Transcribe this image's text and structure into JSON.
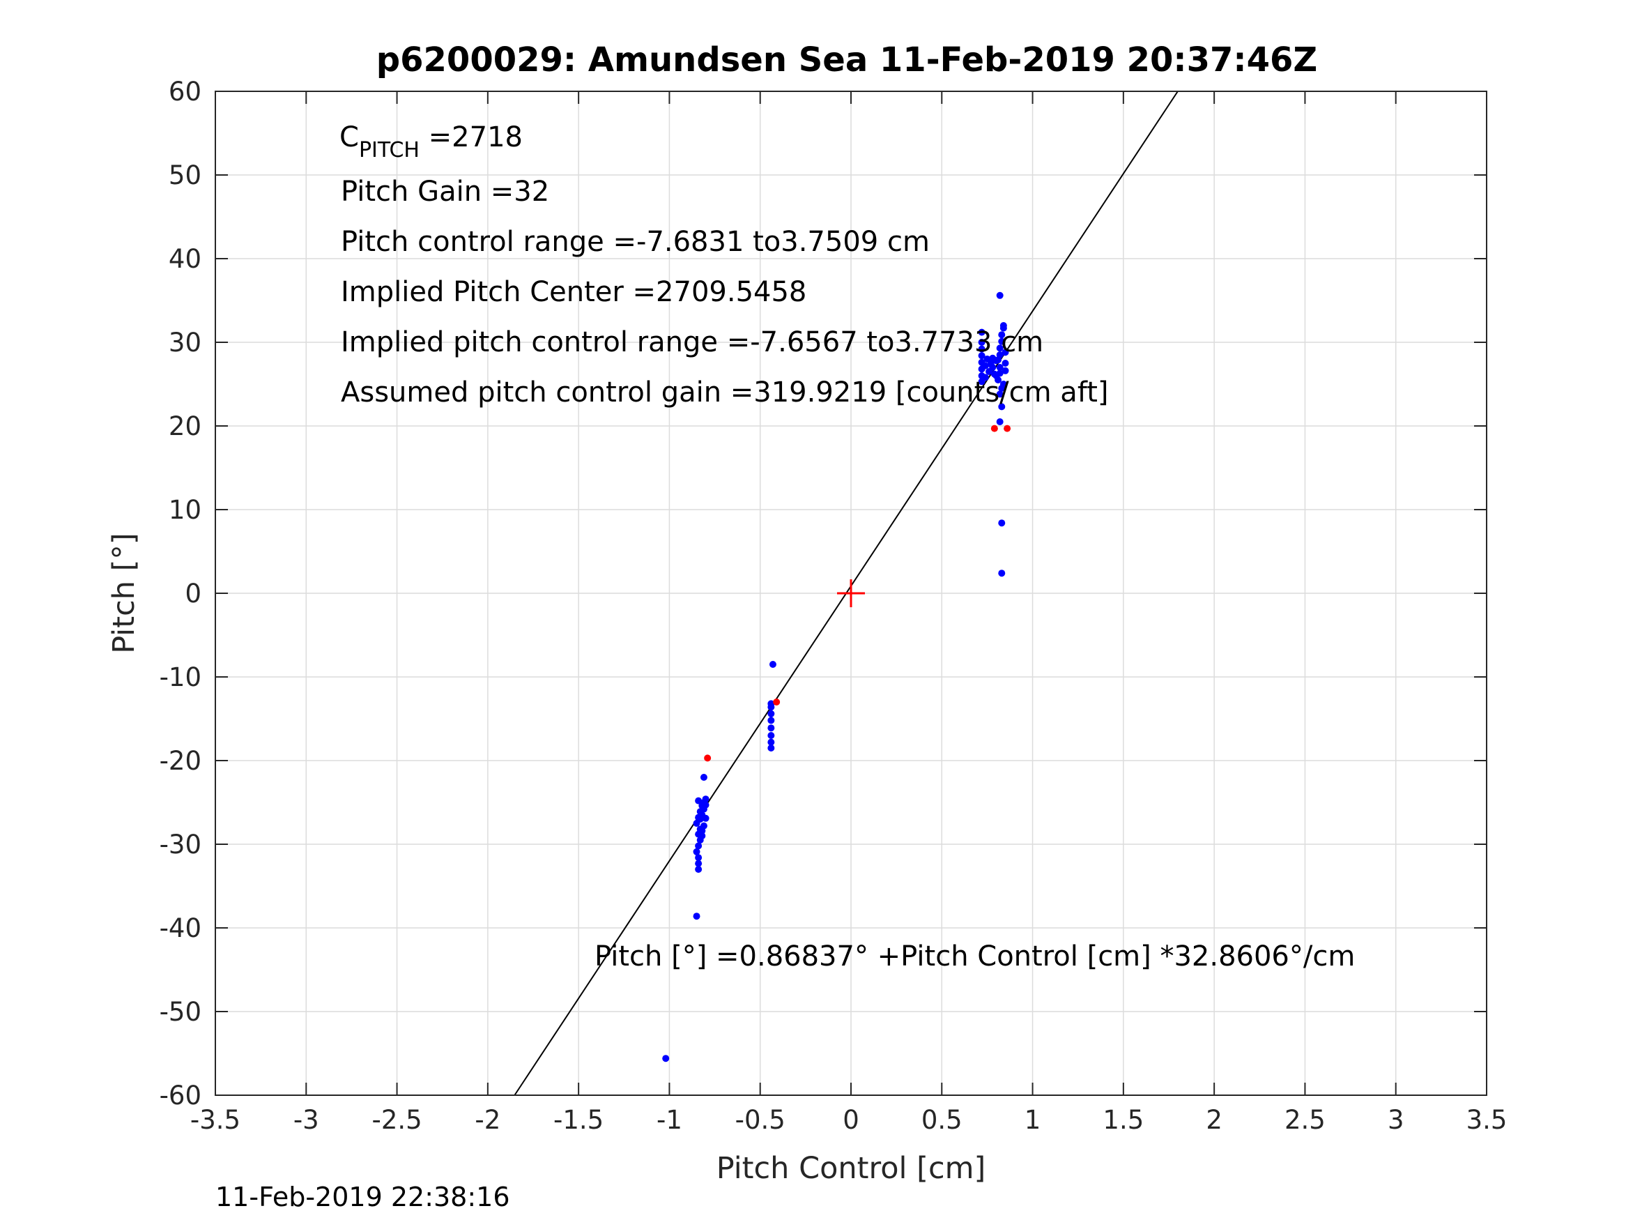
{
  "chart_data": {
    "type": "scatter",
    "title": "p6200029: Amundsen Sea 11-Feb-2019 20:37:46Z",
    "xlabel": "Pitch Control [cm]",
    "ylabel": "Pitch [°]",
    "xlim": [
      -3.5,
      3.5
    ],
    "ylim": [
      -60,
      60
    ],
    "xticks": [
      -3.5,
      -3,
      -2.5,
      -2,
      -1.5,
      -1,
      -0.5,
      0,
      0.5,
      1,
      1.5,
      2,
      2.5,
      3,
      3.5
    ],
    "xtick_labels": [
      "-3.5",
      "-3",
      "-2.5",
      "-2",
      "-1.5",
      "-1",
      "-0.5",
      "0",
      "0.5",
      "1",
      "1.5",
      "2",
      "2.5",
      "3",
      "3.5"
    ],
    "yticks": [
      -60,
      -50,
      -40,
      -30,
      -20,
      -10,
      0,
      10,
      20,
      30,
      40,
      50,
      60
    ],
    "ytick_labels": [
      "-60",
      "-50",
      "-40",
      "-30",
      "-20",
      "-10",
      "0",
      "10",
      "20",
      "30",
      "40",
      "50",
      "60"
    ],
    "grid": true,
    "fit_line": {
      "intercept": 0.86837,
      "slope": 32.8606
    },
    "center_marker": {
      "x": 0,
      "y": 0,
      "color": "#ff0000"
    },
    "series": [
      {
        "color": "#0000ff",
        "points": [
          [
            -1.02,
            -55.6
          ],
          [
            -0.85,
            -38.6
          ],
          [
            -0.84,
            -33.0
          ],
          [
            -0.84,
            -32.3
          ],
          [
            -0.84,
            -31.6
          ],
          [
            -0.85,
            -30.9
          ],
          [
            -0.84,
            -30.2
          ],
          [
            -0.83,
            -29.5
          ],
          [
            -0.84,
            -28.8
          ],
          [
            -0.83,
            -28.2
          ],
          [
            -0.85,
            -27.5
          ],
          [
            -0.84,
            -26.8
          ],
          [
            -0.83,
            -26.1
          ],
          [
            -0.82,
            -25.4
          ],
          [
            -0.84,
            -24.8
          ],
          [
            -0.81,
            -25.0
          ],
          [
            -0.82,
            -26.5
          ],
          [
            -0.81,
            -27.8
          ],
          [
            -0.82,
            -29.0
          ],
          [
            -0.8,
            -24.6
          ],
          [
            -0.81,
            -25.8
          ],
          [
            -0.8,
            -26.9
          ],
          [
            -0.81,
            -22.0
          ],
          [
            -0.83,
            -27.0
          ],
          [
            -0.82,
            -28.4
          ],
          [
            -0.8,
            -25.3
          ],
          [
            -0.44,
            -18.5
          ],
          [
            -0.44,
            -17.8
          ],
          [
            -0.44,
            -17.0
          ],
          [
            -0.44,
            -16.1
          ],
          [
            -0.44,
            -15.2
          ],
          [
            -0.44,
            -14.4
          ],
          [
            -0.44,
            -13.6
          ],
          [
            -0.44,
            -13.2
          ],
          [
            -0.43,
            -8.5
          ],
          [
            0.83,
            2.4
          ],
          [
            0.83,
            8.4
          ],
          [
            0.82,
            20.5
          ],
          [
            0.83,
            22.3
          ],
          [
            0.82,
            23.8
          ],
          [
            0.72,
            25.3
          ],
          [
            0.72,
            26.0
          ],
          [
            0.72,
            26.8
          ],
          [
            0.72,
            27.6
          ],
          [
            0.72,
            28.4
          ],
          [
            0.72,
            29.2
          ],
          [
            0.72,
            30.0
          ],
          [
            0.72,
            31.2
          ],
          [
            0.74,
            25.8
          ],
          [
            0.74,
            27.2
          ],
          [
            0.75,
            28.0
          ],
          [
            0.76,
            26.5
          ],
          [
            0.77,
            27.4
          ],
          [
            0.78,
            28.1
          ],
          [
            0.79,
            26.2
          ],
          [
            0.8,
            27.8
          ],
          [
            0.81,
            25.5
          ],
          [
            0.82,
            26.3
          ],
          [
            0.82,
            27.0
          ],
          [
            0.82,
            28.5
          ],
          [
            0.82,
            29.3
          ],
          [
            0.83,
            30.1
          ],
          [
            0.83,
            30.9
          ],
          [
            0.84,
            31.7
          ],
          [
            0.84,
            32.0
          ],
          [
            0.85,
            26.6
          ],
          [
            0.85,
            27.5
          ],
          [
            0.85,
            28.8
          ],
          [
            0.84,
            25.0
          ],
          [
            0.83,
            24.5
          ],
          [
            0.82,
            35.6
          ],
          [
            0.81,
            27.9
          ],
          [
            0.8,
            26.0
          ],
          [
            0.78,
            27.0
          ]
        ]
      },
      {
        "color": "#ff0000",
        "points": [
          [
            -0.79,
            -19.7
          ],
          [
            -0.41,
            -13.0
          ],
          [
            0.79,
            19.7
          ],
          [
            0.86,
            19.7
          ]
        ]
      }
    ],
    "annotations": {
      "c_pitch_main": "C",
      "c_pitch_sub": "PITCH",
      "c_pitch_value": " =2718",
      "pitch_gain": "Pitch Gain =32",
      "pitch_control_range": "Pitch control range =-7.6831 to3.7509 cm",
      "implied_pitch_center": "Implied Pitch Center =2709.5458",
      "implied_pitch_control_range": "Implied pitch control range =-7.6567 to3.7733 cm",
      "assumed_gain": "Assumed pitch control gain =319.9219 [counts/cm aft]",
      "fit_equation": "Pitch [°] =0.86837° +Pitch Control [cm] *32.8606°/cm"
    },
    "footer_timestamp": "11-Feb-2019 22:38:16"
  }
}
